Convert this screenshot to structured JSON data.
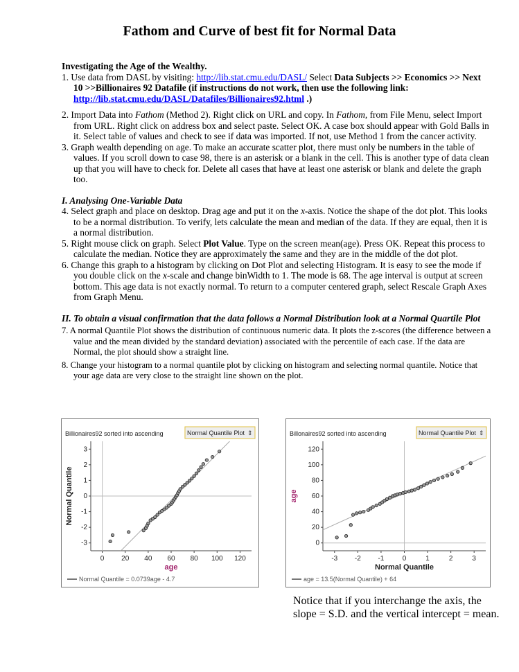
{
  "title": "Fathom and Curve of best fit for Normal Data",
  "intro_heading": "Investigating the Age of the Wealthy.",
  "steps": {
    "s1": {
      "n": "1.",
      "a": "Use data from DASL by visiting: ",
      "link1": "http://lib.stat.cmu.edu/DASL/",
      "b": " Select ",
      "c": "Data Subjects >> Economics >> Next 10 >>Billionaires 92 Datafile (if instructions do not work, then use the following link: ",
      "link2": "http://lib.stat.cmu.edu/DASL/Datafiles/Billionaires92.html",
      "d": " .)"
    },
    "s2": {
      "n": "2.",
      "a": "Import Data into ",
      "f1": "Fathom",
      "b": " (Method 2). Right click on URL and copy. In ",
      "f2": "Fathom,",
      "c": " from File Menu, select Import from URL. Right click on address box and select paste. Select OK. A case box should appear with Gold Balls in it. Select table of values and check to see if data was imported. If not, use Method 1 from the cancer activity."
    },
    "s3": {
      "n": "3.",
      "a": "Graph wealth depending on age. To make an accurate scatter plot, there must only be numbers in the table of values. If you scroll down to case 98, there is an asterisk or a blank in the cell. This is another type of data clean up that you will have to check for. Delete all cases that have at least one asterisk or blank and delete the graph too."
    },
    "sec1": "I.  Analysing One-Variable Data",
    "s4": {
      "n": "4.",
      "a": "Select graph and place on desktop. Drag age and put it on the ",
      "x": "x",
      "b": "-axis. Notice the shape of the dot plot. This looks to be a normal distribution. To verify, lets calculate the mean and median of the data. If they are equal, then it is a normal distribution."
    },
    "s5": {
      "n": "5.",
      "a": "Right mouse click on graph. Select ",
      "bold": "Plot Value",
      "b": ". Type on the screen mean(age). Press OK. Repeat this process to calculate the median. Notice they are approximately the same and they are in the middle of the dot plot."
    },
    "s6": {
      "n": "6.",
      "a": "Change this graph to a histogram by clicking on Dot Plot and selecting Histogram. It is easy to see the mode if you double click on the ",
      "x": "x",
      "b": "-scale and change binWidth to 1. The mode is 68.  The age interval is output at screen bottom.  This age data is not exactly normal. To return to a computer centered graph, select Rescale Graph Axes from Graph Menu."
    },
    "sec2": "II.  To obtain a visual confirmation that the data follows a Normal Distribution look at a Normal Quartile Plot",
    "s7": {
      "n": "7.",
      "a": "A normal Quantile Plot shows the distribution of continuous numeric data.  It plots the z-scores (the difference between a value and the mean divided by the standard deviation) associated with the percentile of each case.  If the data are Normal, the plot should show a straight line."
    },
    "s8": {
      "n": "8.",
      "a": "Change your histogram to a normal quantile plot by clicking on histogram and selecting normal quantile.  Notice that your age data are very close to the straight line shown on the plot."
    }
  },
  "note": "Notice that if you interchange the axis, the slope = S.D. and the vertical intercept = mean.",
  "chart_data": [
    {
      "type": "scatter",
      "title": "Billionaires92 sorted into ascending",
      "plot_menu": "Normal Quantile Plot",
      "xlabel": "age",
      "ylabel": "Normal Quantile",
      "xlim": [
        -10,
        130
      ],
      "ylim": [
        -3.5,
        3.5
      ],
      "xticks": [
        0,
        20,
        40,
        60,
        80,
        100,
        120
      ],
      "yticks": [
        -3,
        -2,
        -1,
        0,
        1,
        2,
        3
      ],
      "fit_line": {
        "slope": 0.0739,
        "intercept": -4.7
      },
      "legend": "Normal Quantile = 0.0739age - 4.7",
      "xlabel_color": "#a0206a",
      "axis_color": "#444444",
      "points": [
        [
          7,
          -2.9
        ],
        [
          9,
          -2.5
        ],
        [
          23,
          -2.3
        ],
        [
          36,
          -2.2
        ],
        [
          38,
          -2.05
        ],
        [
          39,
          -1.9
        ],
        [
          40,
          -1.75
        ],
        [
          42,
          -1.55
        ],
        [
          44,
          -1.45
        ],
        [
          46,
          -1.35
        ],
        [
          48,
          -1.2
        ],
        [
          50,
          -1.05
        ],
        [
          52,
          -0.95
        ],
        [
          54,
          -0.85
        ],
        [
          56,
          -0.75
        ],
        [
          58,
          -0.62
        ],
        [
          60,
          -0.5
        ],
        [
          61,
          -0.4
        ],
        [
          62,
          -0.3
        ],
        [
          63,
          -0.18
        ],
        [
          64,
          -0.05
        ],
        [
          65,
          0.05
        ],
        [
          66,
          0.2
        ],
        [
          67,
          0.32
        ],
        [
          68,
          0.45
        ],
        [
          70,
          0.6
        ],
        [
          72,
          0.72
        ],
        [
          74,
          0.85
        ],
        [
          76,
          0.98
        ],
        [
          78,
          1.12
        ],
        [
          80,
          1.28
        ],
        [
          82,
          1.45
        ],
        [
          84,
          1.65
        ],
        [
          86,
          1.85
        ],
        [
          88,
          2.05
        ],
        [
          91,
          2.3
        ],
        [
          96,
          2.5
        ],
        [
          102,
          2.85
        ]
      ]
    },
    {
      "type": "scatter",
      "title": "Billonaires92 sorted into ascending",
      "plot_menu": "Normal Quantile Plot",
      "xlabel": "Normal Quantile",
      "ylabel": "age",
      "xlim": [
        -3.5,
        3.5
      ],
      "ylim": [
        -10,
        130
      ],
      "xticks": [
        -3,
        -2,
        -1,
        0,
        1,
        2,
        3
      ],
      "yticks": [
        0,
        20,
        40,
        60,
        80,
        100,
        120
      ],
      "fit_line": {
        "slope": 13.5,
        "intercept": 64
      },
      "legend": "age = 13.5(Normal Quantile) + 64",
      "ylabel_color": "#a0206a",
      "axis_color": "#444444",
      "points": [
        [
          -2.9,
          7
        ],
        [
          -2.5,
          9
        ],
        [
          -2.3,
          23
        ],
        [
          -2.2,
          36
        ],
        [
          -2.05,
          38
        ],
        [
          -1.9,
          39
        ],
        [
          -1.75,
          40
        ],
        [
          -1.55,
          42
        ],
        [
          -1.45,
          44
        ],
        [
          -1.35,
          46
        ],
        [
          -1.2,
          48
        ],
        [
          -1.05,
          50
        ],
        [
          -0.95,
          52
        ],
        [
          -0.85,
          54
        ],
        [
          -0.75,
          56
        ],
        [
          -0.62,
          58
        ],
        [
          -0.5,
          60
        ],
        [
          -0.4,
          61
        ],
        [
          -0.3,
          62
        ],
        [
          -0.18,
          63
        ],
        [
          -0.05,
          64
        ],
        [
          0.05,
          65
        ],
        [
          0.2,
          66
        ],
        [
          0.32,
          67
        ],
        [
          0.45,
          68
        ],
        [
          0.6,
          70
        ],
        [
          0.72,
          72
        ],
        [
          0.85,
          74
        ],
        [
          0.98,
          76
        ],
        [
          1.12,
          78
        ],
        [
          1.28,
          80
        ],
        [
          1.45,
          82
        ],
        [
          1.65,
          84
        ],
        [
          1.85,
          86
        ],
        [
          2.05,
          88
        ],
        [
          2.3,
          91
        ],
        [
          2.5,
          96
        ],
        [
          2.85,
          102
        ]
      ]
    }
  ]
}
